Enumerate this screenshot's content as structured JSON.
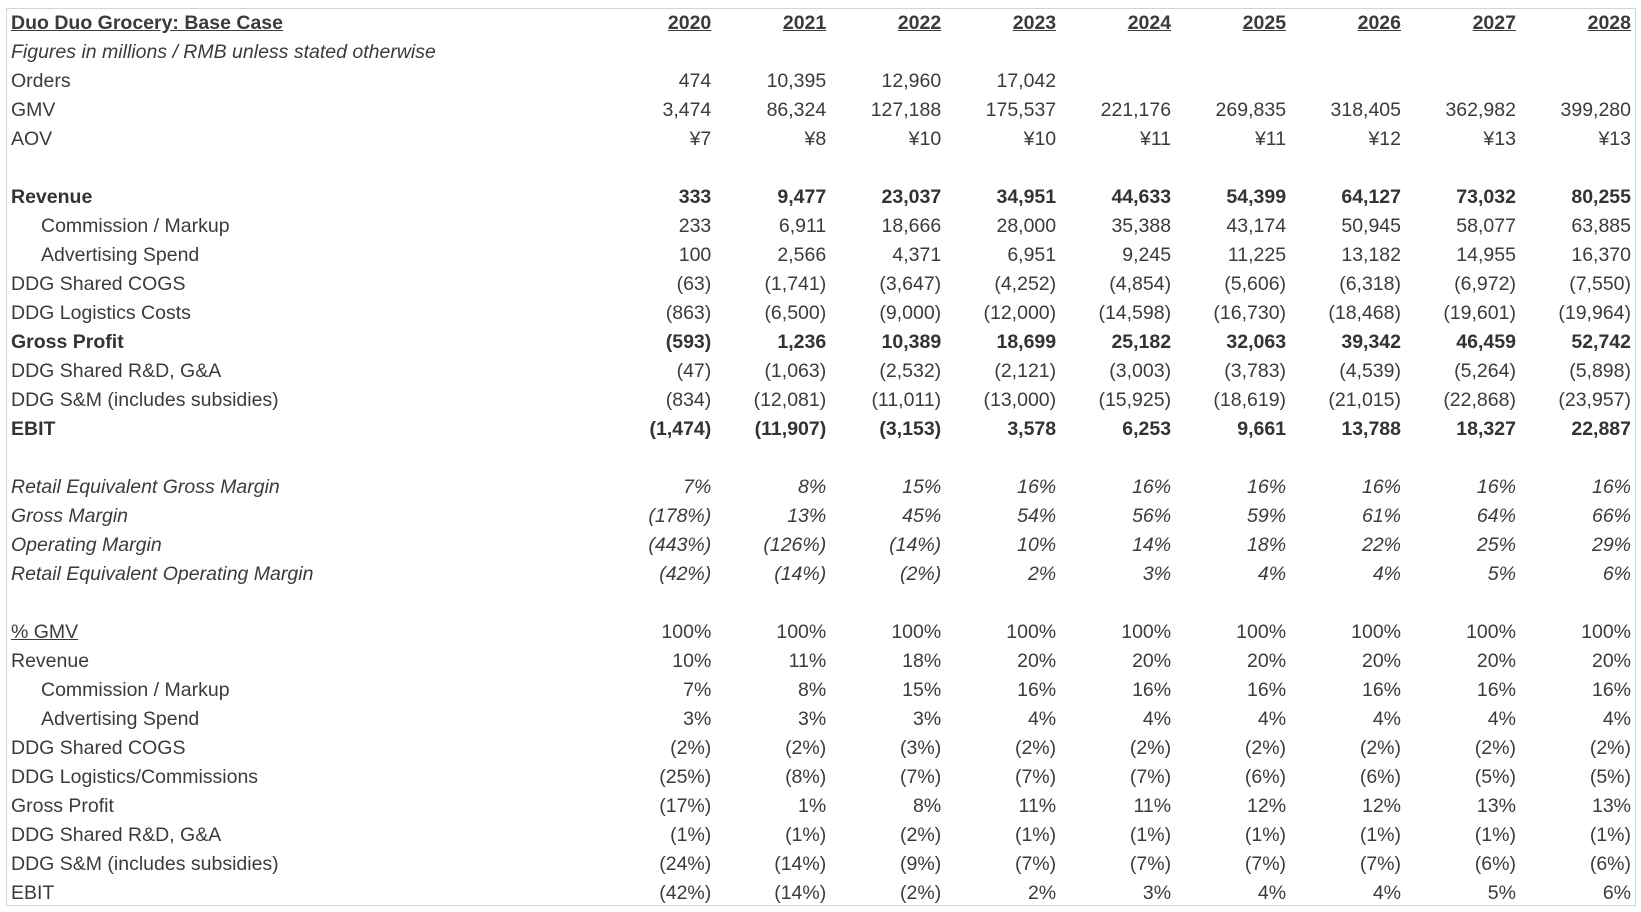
{
  "title": "Duo Duo Grocery: Base Case",
  "subtitle": "Figures in millions / RMB unless stated otherwise",
  "years": [
    "2020",
    "2021",
    "2022",
    "2023",
    "2024",
    "2025",
    "2026",
    "2027",
    "2028"
  ],
  "ops": [
    {
      "label": "Orders",
      "values": [
        "474",
        "10,395",
        "12,960",
        "17,042",
        "",
        "",
        "",
        "",
        ""
      ]
    },
    {
      "label": "GMV",
      "values": [
        "3,474",
        "86,324",
        "127,188",
        "175,537",
        "221,176",
        "269,835",
        "318,405",
        "362,982",
        "399,280"
      ]
    },
    {
      "label": "AOV",
      "values": [
        "¥7",
        "¥8",
        "¥10",
        "¥10",
        "¥11",
        "¥11",
        "¥12",
        "¥13",
        "¥13"
      ]
    }
  ],
  "pnl": [
    {
      "label": "Revenue",
      "style": "bold",
      "values": [
        "333",
        "9,477",
        "23,037",
        "34,951",
        "44,633",
        "54,399",
        "64,127",
        "73,032",
        "80,255"
      ]
    },
    {
      "label": "Commission / Markup",
      "style": "indent",
      "values": [
        "233",
        "6,911",
        "18,666",
        "28,000",
        "35,388",
        "43,174",
        "50,945",
        "58,077",
        "63,885"
      ]
    },
    {
      "label": "Advertising Spend",
      "style": "indent",
      "values": [
        "100",
        "2,566",
        "4,371",
        "6,951",
        "9,245",
        "11,225",
        "13,182",
        "14,955",
        "16,370"
      ]
    },
    {
      "label": "DDG Shared COGS",
      "style": "",
      "values": [
        "(63)",
        "(1,741)",
        "(3,647)",
        "(4,252)",
        "(4,854)",
        "(5,606)",
        "(6,318)",
        "(6,972)",
        "(7,550)"
      ]
    },
    {
      "label": "DDG Logistics Costs",
      "style": "",
      "values": [
        "(863)",
        "(6,500)",
        "(9,000)",
        "(12,000)",
        "(14,598)",
        "(16,730)",
        "(18,468)",
        "(19,601)",
        "(19,964)"
      ]
    },
    {
      "label": "Gross Profit",
      "style": "bold",
      "values": [
        "(593)",
        "1,236",
        "10,389",
        "18,699",
        "25,182",
        "32,063",
        "39,342",
        "46,459",
        "52,742"
      ]
    },
    {
      "label": "DDG Shared R&D, G&A",
      "style": "",
      "values": [
        "(47)",
        "(1,063)",
        "(2,532)",
        "(2,121)",
        "(3,003)",
        "(3,783)",
        "(4,539)",
        "(5,264)",
        "(5,898)"
      ]
    },
    {
      "label": "DDG S&M (includes subsidies)",
      "style": "",
      "values": [
        "(834)",
        "(12,081)",
        "(11,011)",
        "(13,000)",
        "(15,925)",
        "(18,619)",
        "(21,015)",
        "(22,868)",
        "(23,957)"
      ]
    },
    {
      "label": "EBIT",
      "style": "bold",
      "values": [
        "(1,474)",
        "(11,907)",
        "(3,153)",
        "3,578",
        "6,253",
        "9,661",
        "13,788",
        "18,327",
        "22,887"
      ]
    }
  ],
  "margins": [
    {
      "label": "Retail Equivalent Gross Margin",
      "values": [
        "7%",
        "8%",
        "15%",
        "16%",
        "16%",
        "16%",
        "16%",
        "16%",
        "16%"
      ]
    },
    {
      "label": "Gross Margin",
      "values": [
        "(178%)",
        "13%",
        "45%",
        "54%",
        "56%",
        "59%",
        "61%",
        "64%",
        "66%"
      ]
    },
    {
      "label": "Operating Margin",
      "values": [
        "(443%)",
        "(126%)",
        "(14%)",
        "10%",
        "14%",
        "18%",
        "22%",
        "25%",
        "29%"
      ]
    },
    {
      "label": "Retail Equivalent Operating Margin",
      "values": [
        "(42%)",
        "(14%)",
        "(2%)",
        "2%",
        "3%",
        "4%",
        "4%",
        "5%",
        "6%"
      ]
    }
  ],
  "pct_gmv": [
    {
      "label": "% GMV",
      "style": "pct-header",
      "values": [
        "100%",
        "100%",
        "100%",
        "100%",
        "100%",
        "100%",
        "100%",
        "100%",
        "100%"
      ]
    },
    {
      "label": "Revenue",
      "style": "",
      "values": [
        "10%",
        "11%",
        "18%",
        "20%",
        "20%",
        "20%",
        "20%",
        "20%",
        "20%"
      ]
    },
    {
      "label": "Commission / Markup",
      "style": "indent",
      "values": [
        "7%",
        "8%",
        "15%",
        "16%",
        "16%",
        "16%",
        "16%",
        "16%",
        "16%"
      ]
    },
    {
      "label": "Advertising Spend",
      "style": "indent",
      "values": [
        "3%",
        "3%",
        "3%",
        "4%",
        "4%",
        "4%",
        "4%",
        "4%",
        "4%"
      ]
    },
    {
      "label": "DDG Shared COGS",
      "style": "",
      "values": [
        "(2%)",
        "(2%)",
        "(3%)",
        "(2%)",
        "(2%)",
        "(2%)",
        "(2%)",
        "(2%)",
        "(2%)"
      ]
    },
    {
      "label": "DDG Logistics/Commissions",
      "style": "",
      "values": [
        "(25%)",
        "(8%)",
        "(7%)",
        "(7%)",
        "(7%)",
        "(6%)",
        "(6%)",
        "(5%)",
        "(5%)"
      ]
    },
    {
      "label": "Gross Profit",
      "style": "",
      "values": [
        "(17%)",
        "1%",
        "8%",
        "11%",
        "11%",
        "12%",
        "12%",
        "13%",
        "13%"
      ]
    },
    {
      "label": "DDG Shared R&D, G&A",
      "style": "",
      "values": [
        "(1%)",
        "(1%)",
        "(2%)",
        "(1%)",
        "(1%)",
        "(1%)",
        "(1%)",
        "(1%)",
        "(1%)"
      ]
    },
    {
      "label": "DDG S&M (includes subsidies)",
      "style": "",
      "values": [
        "(24%)",
        "(14%)",
        "(9%)",
        "(7%)",
        "(7%)",
        "(7%)",
        "(7%)",
        "(6%)",
        "(6%)"
      ]
    },
    {
      "label": "EBIT",
      "style": "",
      "values": [
        "(42%)",
        "(14%)",
        "(2%)",
        "2%",
        "3%",
        "4%",
        "4%",
        "5%",
        "6%"
      ]
    }
  ]
}
